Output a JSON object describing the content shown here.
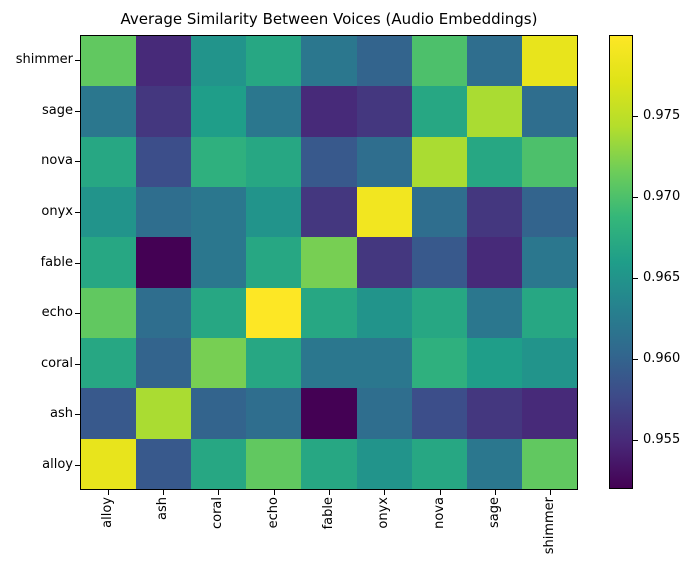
{
  "figure": {
    "title": "Average Similarity Between Voices (Audio Embeddings)"
  },
  "chart_data": {
    "type": "heatmap",
    "title": "Average Similarity Between Voices (Audio Embeddings)",
    "x_labels": [
      "alloy",
      "ash",
      "coral",
      "echo",
      "fable",
      "onyx",
      "nova",
      "sage",
      "shimmer"
    ],
    "y_labels_top_to_bottom": [
      "shimmer",
      "sage",
      "nova",
      "onyx",
      "fable",
      "echo",
      "coral",
      "ash",
      "alloy"
    ],
    "matrix_rows_follow_y_labels_top_to_bottom": true,
    "matrix": [
      [
        0.971,
        0.955,
        0.965,
        0.967,
        0.962,
        0.96,
        0.97,
        0.961,
        0.978
      ],
      [
        0.962,
        0.956,
        0.966,
        0.962,
        0.955,
        0.956,
        0.967,
        0.974,
        0.961
      ],
      [
        0.967,
        0.958,
        0.968,
        0.967,
        0.959,
        0.961,
        0.974,
        0.967,
        0.97
      ],
      [
        0.965,
        0.961,
        0.962,
        0.965,
        0.956,
        0.979,
        0.961,
        0.956,
        0.96
      ],
      [
        0.967,
        0.952,
        0.962,
        0.967,
        0.972,
        0.956,
        0.959,
        0.955,
        0.962
      ],
      [
        0.971,
        0.961,
        0.967,
        0.98,
        0.967,
        0.965,
        0.967,
        0.962,
        0.967
      ],
      [
        0.967,
        0.96,
        0.972,
        0.967,
        0.962,
        0.962,
        0.968,
        0.966,
        0.965
      ],
      [
        0.959,
        0.974,
        0.96,
        0.961,
        0.952,
        0.961,
        0.958,
        0.956,
        0.955
      ],
      [
        0.978,
        0.959,
        0.967,
        0.971,
        0.967,
        0.965,
        0.967,
        0.962,
        0.971
      ]
    ],
    "vmin": 0.952,
    "vmax": 0.98,
    "colormap": "viridis",
    "colorbar_ticks": [
      0.975,
      0.97,
      0.965,
      0.96,
      0.955
    ],
    "colorbar_position": "right",
    "grid": false
  }
}
